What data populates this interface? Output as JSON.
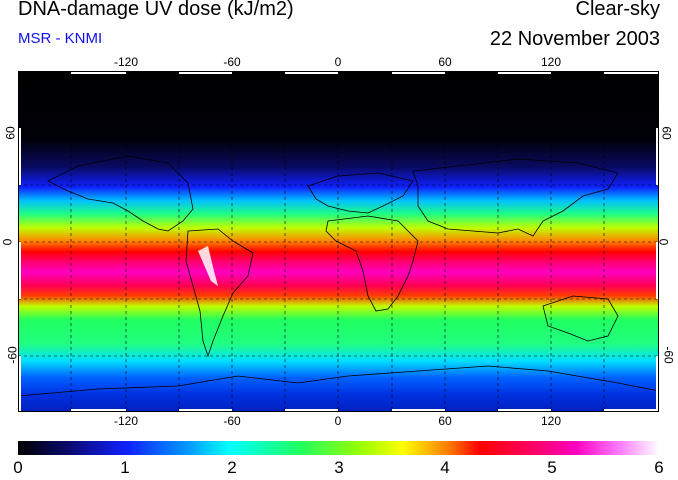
{
  "header": {
    "title": "DNA-damage UV dose (kJ/m2)",
    "subtitle": "MSR - KNMI",
    "mode": "Clear-sky",
    "date": "22 November 2003"
  },
  "map": {
    "lon_ticks": [
      "-120",
      "-60",
      "0",
      "60",
      "120"
    ],
    "lat_ticks": [
      "60",
      "0",
      "-60"
    ]
  },
  "colorbar": {
    "ticks": [
      "0",
      "1",
      "2",
      "3",
      "4",
      "5",
      "6"
    ],
    "colors": [
      "#000000",
      "#1020ff",
      "#00ffff",
      "#20ff60",
      "#ffff00",
      "#ff0000",
      "#ff00c0",
      "#ffffff"
    ]
  }
}
